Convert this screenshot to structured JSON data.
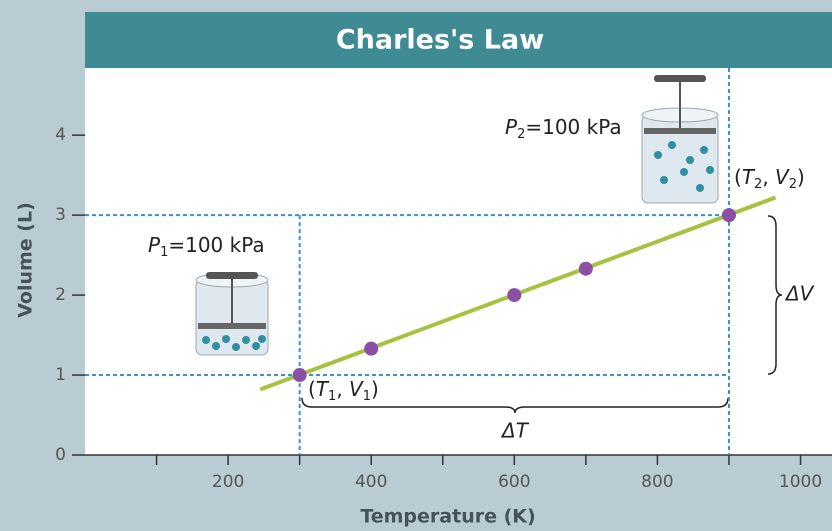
{
  "chart_data": {
    "type": "scatter",
    "title": "Charles's Law",
    "x_label": "Temperature (K)",
    "y_label": "Volume (L)",
    "x": [
      300,
      400,
      600,
      700,
      900
    ],
    "values": [
      1,
      1.33,
      2,
      2.33,
      3
    ],
    "color": "#8b4fa6",
    "line": {
      "x": [
        245,
        965
      ],
      "values": [
        0.82,
        3.22
      ],
      "color": "#a5c240"
    },
    "xlim": [
      0,
      1044
    ],
    "ylim": [
      0,
      4.84
    ],
    "xticks": [
      200,
      400,
      600,
      800,
      1000
    ],
    "xminorticks": [
      100,
      300,
      500,
      700,
      900
    ],
    "yticks": [
      0,
      1,
      2,
      3,
      4
    ],
    "guide_color": "#3b8fd3",
    "annotations": {
      "p1": [
        {
          "text": "P"
        },
        {
          "text": "1",
          "sub": true
        },
        {
          "text": "=100 kPa"
        }
      ],
      "p2": [
        {
          "text": "P"
        },
        {
          "text": "2",
          "sub": true
        },
        {
          "text": "=100 kPa"
        }
      ],
      "point1": [
        {
          "text": "("
        },
        {
          "text": "T"
        },
        {
          "text": "1",
          "sub": true
        },
        {
          "text": ", "
        },
        {
          "text": "V"
        },
        {
          "text": "1",
          "sub": true
        },
        {
          "text": ")"
        }
      ],
      "point2": [
        {
          "text": "("
        },
        {
          "text": "T"
        },
        {
          "text": "2",
          "sub": true
        },
        {
          "text": ", "
        },
        {
          "text": "V"
        },
        {
          "text": "2",
          "sub": true
        },
        {
          "text": ")"
        }
      ],
      "delta_v": "ΔV",
      "delta_t": "ΔT"
    }
  }
}
